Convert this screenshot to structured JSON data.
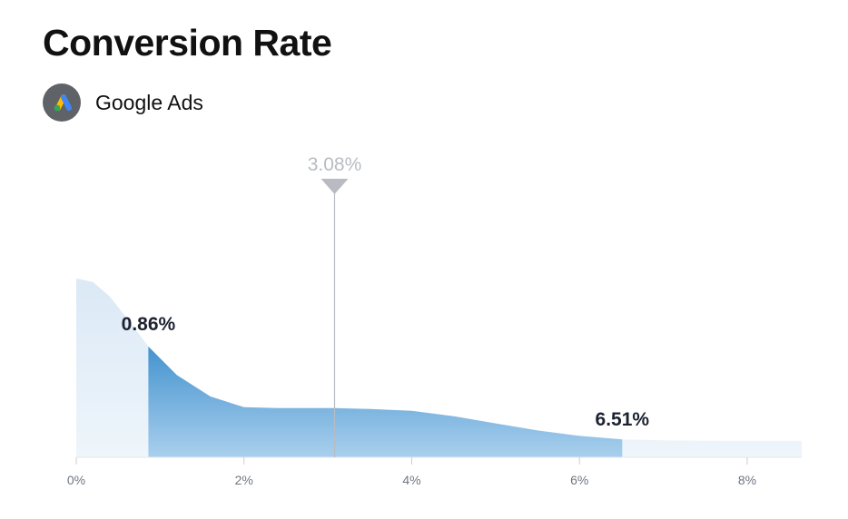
{
  "title": "Conversion Rate",
  "source": {
    "name": "Google Ads",
    "icon": "google-ads-logo-icon"
  },
  "colors": {
    "light_fill": "#deebf7",
    "dark_fill_top": "#4a9bd3",
    "dark_fill_bottom": "#a9d0ee",
    "marker": "#b8bcc2",
    "tick_text": "#6f7782"
  },
  "chart_data": {
    "type": "area",
    "title": "Conversion Rate",
    "xlabel": "",
    "ylabel": "",
    "xlim": [
      0,
      8.65
    ],
    "x_ticks": [
      "0%",
      "2%",
      "4%",
      "6%",
      "8%"
    ],
    "x_tick_values": [
      0,
      2,
      4,
      6,
      8
    ],
    "distribution": {
      "x": [
        0,
        0.2,
        0.4,
        0.6,
        0.86,
        1.2,
        1.6,
        2.0,
        2.4,
        2.8,
        3.08,
        3.5,
        4.0,
        4.5,
        5.0,
        5.5,
        6.0,
        6.51,
        7.0,
        7.5,
        8.0,
        8.65
      ],
      "density": [
        1.0,
        0.98,
        0.9,
        0.78,
        0.62,
        0.46,
        0.34,
        0.28,
        0.275,
        0.275,
        0.275,
        0.27,
        0.26,
        0.23,
        0.19,
        0.15,
        0.12,
        0.1,
        0.095,
        0.093,
        0.092,
        0.092
      ]
    },
    "highlight_range": {
      "low": 0.86,
      "high": 6.51,
      "low_label": "0.86%",
      "high_label": "6.51%"
    },
    "marker": {
      "value": 3.08,
      "label": "3.08%"
    },
    "grid": false,
    "legend": "none"
  }
}
